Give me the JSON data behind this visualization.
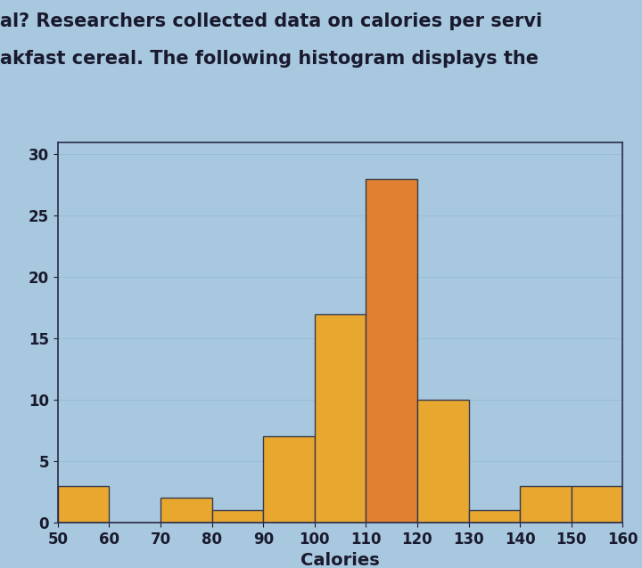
{
  "bin_edges": [
    50,
    60,
    70,
    80,
    90,
    100,
    110,
    120,
    130,
    140,
    150,
    160
  ],
  "counts": [
    3,
    0,
    2,
    1,
    7,
    17,
    28,
    10,
    1,
    3,
    3
  ],
  "bar_colors": [
    "#E8A830",
    "#E8A830",
    "#E8A830",
    "#E8A830",
    "#E8A830",
    "#E8A830",
    "#E08030",
    "#E8A830",
    "#E8A830",
    "#E8A830",
    "#E8A830"
  ],
  "bar_edgecolor": "#3A3A4A",
  "xlabel": "Calories",
  "ylabel": "",
  "ylim": [
    0,
    31
  ],
  "yticks": [
    0,
    5,
    10,
    15,
    20,
    25,
    30
  ],
  "xticks": [
    50,
    60,
    70,
    80,
    90,
    100,
    110,
    120,
    130,
    140,
    150,
    160
  ],
  "xlabel_fontsize": 14,
  "tick_fontsize": 12,
  "background_color": "#A8C8DF",
  "title_text1": "al? Researchers collected data on calories per servi",
  "title_text2": "akfast cereal. The following histogram displays the",
  "title_fontsize": 15,
  "title_color": "#1a1a2e"
}
